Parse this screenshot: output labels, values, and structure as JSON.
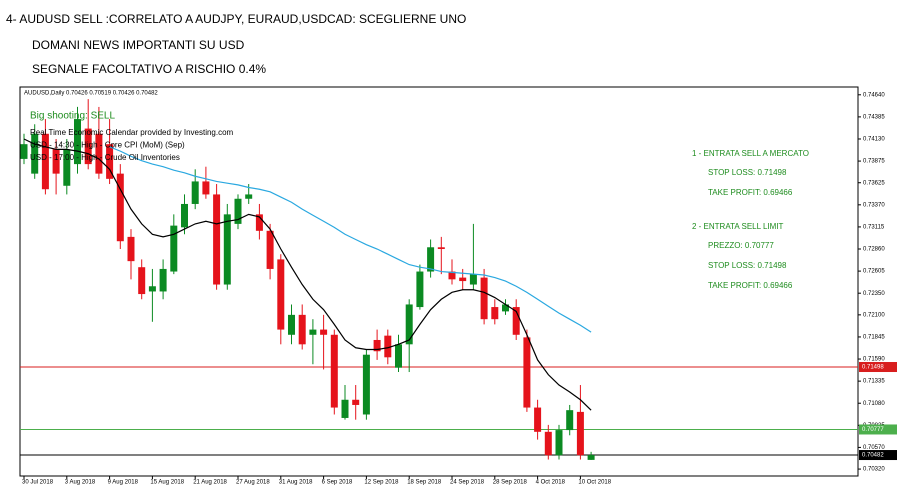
{
  "header": {
    "lines": [
      "4- AUDUSD SELL :CORRELATO A AUDJPY, EURAUD,USDCAD: SCEGLIERNE UNO",
      "DOMANI NEWS IMPORTANTI SU USD",
      "SEGNALE FACOLTATIVO A RISCHIO 0.4%"
    ]
  },
  "chart_data": {
    "type": "candlestick",
    "title": "AUDUSD,Daily  0.70426 0.70519 0.70426 0.70482",
    "up_color": "#0b8a22",
    "down_color": "#e5131b",
    "categories": [
      "30 Jul 2018",
      null,
      null,
      null,
      "3 Aug 2018",
      null,
      null,
      null,
      "9 Aug 2018",
      null,
      null,
      null,
      "15 Aug 2018",
      null,
      null,
      null,
      "21 Aug 2018",
      null,
      null,
      null,
      "27 Aug 2018",
      null,
      null,
      null,
      "31 Aug 2018",
      null,
      null,
      null,
      "6 Sep 2018",
      null,
      null,
      null,
      "12 Sep 2018",
      null,
      null,
      null,
      "18 Sep 2018",
      null,
      null,
      null,
      "24 Sep 2018",
      null,
      null,
      null,
      "28 Sep 2018",
      null,
      null,
      null,
      "4 Oct 2018",
      null,
      null,
      null,
      "10 Oct 2018",
      null
    ],
    "open": [
      0.739,
      0.7373,
      0.7419,
      0.7401,
      0.7359,
      0.7384,
      0.7425,
      0.7419,
      0.7407,
      0.7373,
      0.73,
      0.7265,
      0.7237,
      0.7237,
      0.726,
      0.7311,
      0.7338,
      0.7364,
      0.7349,
      0.7245,
      0.7315,
      0.7344,
      0.7326,
      0.7307,
      0.7274,
      0.7187,
      0.721,
      0.7187,
      0.7193,
      0.7187,
      0.7091,
      0.7112,
      0.7095,
      0.7181,
      0.7186,
      0.7149,
      0.7176,
      0.7219,
      0.726,
      0.7288,
      0.726,
      0.7253,
      0.7245,
      0.7253,
      0.7219,
      0.7214,
      0.7219,
      0.7184,
      0.7103,
      0.7075,
      0.7048,
      0.7077,
      0.7098,
      0.70426
    ],
    "high": [
      0.7419,
      0.743,
      0.7436,
      0.7413,
      0.7413,
      0.745,
      0.7459,
      0.745,
      0.7436,
      0.7384,
      0.7309,
      0.7274,
      0.7263,
      0.7274,
      0.7326,
      0.7349,
      0.7378,
      0.7381,
      0.7361,
      0.7338,
      0.7349,
      0.7361,
      0.7338,
      0.7315,
      0.728,
      0.7222,
      0.7222,
      0.7205,
      0.721,
      0.7193,
      0.7129,
      0.7129,
      0.717,
      0.7193,
      0.7193,
      0.7187,
      0.7228,
      0.7268,
      0.7297,
      0.73,
      0.7274,
      0.7263,
      0.7315,
      0.7263,
      0.7228,
      0.7228,
      0.7228,
      0.7193,
      0.7112,
      0.7083,
      0.7083,
      0.7106,
      0.7129,
      0.70519
    ],
    "low": [
      0.7384,
      0.7367,
      0.7349,
      0.7349,
      0.7349,
      0.7373,
      0.7378,
      0.7367,
      0.7361,
      0.7286,
      0.7251,
      0.7228,
      0.7202,
      0.7228,
      0.7257,
      0.7303,
      0.7332,
      0.7344,
      0.7239,
      0.7239,
      0.7309,
      0.7338,
      0.7297,
      0.7251,
      0.7176,
      0.7176,
      0.717,
      0.7153,
      0.7147,
      0.7095,
      0.7089,
      0.7089,
      0.7089,
      0.7158,
      0.7153,
      0.7144,
      0.7144,
      0.7216,
      0.7253,
      0.7257,
      0.7245,
      0.7239,
      0.7239,
      0.7199,
      0.7199,
      0.721,
      0.7181,
      0.7098,
      0.7066,
      0.7043,
      0.7043,
      0.7071,
      0.7043,
      0.70426
    ],
    "close": [
      0.7407,
      0.7419,
      0.7355,
      0.7373,
      0.7401,
      0.7436,
      0.7384,
      0.7373,
      0.7367,
      0.7295,
      0.7272,
      0.7234,
      0.7243,
      0.7263,
      0.7313,
      0.7338,
      0.7364,
      0.7349,
      0.7245,
      0.7326,
      0.7344,
      0.7349,
      0.7307,
      0.7263,
      0.7193,
      0.721,
      0.7176,
      0.7193,
      0.7187,
      0.7103,
      0.7112,
      0.7106,
      0.7164,
      0.7168,
      0.7161,
      0.7176,
      0.7222,
      0.726,
      0.7288,
      0.7286,
      0.7251,
      0.7249,
      0.7257,
      0.7205,
      0.7205,
      0.7222,
      0.7187,
      0.7103,
      0.7075,
      0.7048,
      0.7077,
      0.71,
      0.7048,
      0.70482
    ],
    "overlays": [
      {
        "color": "#000000",
        "values": [
          0.7413,
          0.7407,
          0.7404,
          0.7401,
          0.7401,
          0.7399,
          0.7396,
          0.739,
          0.7378,
          0.7355,
          0.7332,
          0.7315,
          0.7303,
          0.73,
          0.7303,
          0.7309,
          0.7315,
          0.7318,
          0.7315,
          0.7318,
          0.732,
          0.7326,
          0.7323,
          0.7309,
          0.7286,
          0.7265,
          0.7245,
          0.7228,
          0.7216,
          0.7199,
          0.7181,
          0.7172,
          0.717,
          0.717,
          0.7172,
          0.7176,
          0.7181,
          0.7199,
          0.7216,
          0.7228,
          0.7236,
          0.7239,
          0.7239,
          0.7236,
          0.723,
          0.7222,
          0.7214,
          0.7187,
          0.7158,
          0.7141,
          0.7129,
          0.7121,
          0.7112,
          0.71
        ]
      },
      {
        "color": "#2aa8e0",
        "values": [
          null,
          null,
          null,
          null,
          null,
          null,
          null,
          null,
          0.7404,
          0.7399,
          0.7393,
          0.7388,
          0.7384,
          0.7381,
          0.7377,
          0.7374,
          0.737,
          0.7367,
          0.7364,
          0.7362,
          0.736,
          0.7357,
          0.7355,
          0.7352,
          0.7346,
          0.734,
          0.7332,
          0.7325,
          0.7318,
          0.7311,
          0.7303,
          0.7297,
          0.7291,
          0.7286,
          0.728,
          0.7274,
          0.7268,
          0.7265,
          0.7263,
          0.726,
          0.7259,
          0.7258,
          0.7257,
          0.7256,
          0.7253,
          0.7249,
          0.7243,
          0.7236,
          0.7228,
          0.722,
          0.7212,
          0.7205,
          0.7198,
          0.719
        ]
      }
    ],
    "hlines": [
      {
        "value": 0.71498,
        "color": "#d81e1e"
      },
      {
        "value": 0.70777,
        "color": "#4caf4c"
      },
      {
        "value": 0.70482,
        "color": "#000000"
      }
    ],
    "ylim": [
      0.7024,
      0.7473
    ],
    "yticks": [
      {
        "value": 0.7464,
        "label": "0.74640"
      },
      0.74385,
      {
        "value": 0.7413,
        "label": "0.74130"
      },
      0.73875,
      0.73625,
      {
        "value": 0.7337,
        "label": "0.73370"
      },
      0.73115,
      {
        "value": 0.7286,
        "label": "0.72860"
      },
      0.72605,
      {
        "value": 0.7235,
        "label": "0.72350"
      },
      {
        "value": 0.721,
        "label": "0.72100"
      },
      0.71845,
      {
        "value": 0.7159,
        "label": "0.71590"
      },
      0.71335,
      {
        "value": 0.7108,
        "label": "0.71080"
      },
      0.70825,
      {
        "value": 0.7057,
        "label": "0.70570"
      },
      {
        "value": 0.7032,
        "label": "0.70320"
      }
    ],
    "signal": {
      "text": "Big shooting: SELL",
      "color": "#1e8c1e"
    },
    "calendar": [
      "Real Time Economic Calendar provided by Investing.com",
      "USD - 14:30 - High - Core CPI (MoM) (Sep)",
      "USD - 17:00 - High - Crude Oil Inventories"
    ],
    "panel": {
      "color": "#1e8c1e",
      "lines": [
        "1 - ENTRATA SELL A MERCATO",
        "STOP LOSS: 0.71498",
        "TAKE PROFIT: 0.69466",
        "2 - ENTRATA SELL LIMIT",
        "PREZZO: 0.70777",
        "STOP LOSS: 0.71498",
        "TAKE PROFIT: 0.69466"
      ]
    }
  }
}
